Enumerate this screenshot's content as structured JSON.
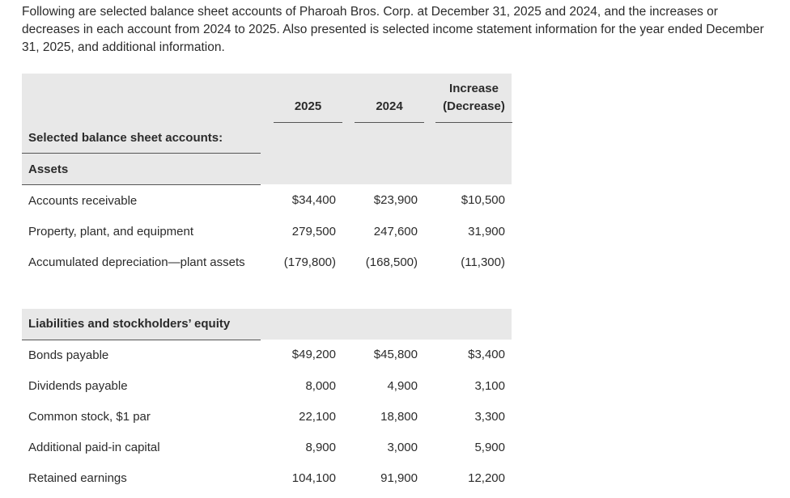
{
  "intro": "Following are selected balance sheet accounts of Pharoah Bros. Corp. at December 31, 2025 and 2024, and the increases or decreases in each account from 2024 to 2025. Also presented is selected income statement information for the year ended December 31, 2025, and additional information.",
  "table": {
    "headers": {
      "col_2025": "2025",
      "col_2024": "2024",
      "col_change_line1": "Increase",
      "col_change_line2": "(Decrease)"
    },
    "section_title": "Selected balance sheet accounts:",
    "assets": {
      "heading": "Assets",
      "rows": [
        {
          "label": "Accounts receivable",
          "v2025": "$34,400",
          "v2024": "$23,900",
          "change": "$10,500"
        },
        {
          "label": "Property, plant, and equipment",
          "v2025": "279,500",
          "v2024": "247,600",
          "change": "31,900"
        },
        {
          "label": "Accumulated depreciation—plant assets",
          "v2025": "(179,800)",
          "v2024": "(168,500)",
          "change": "(11,300)"
        }
      ]
    },
    "liabilities": {
      "heading": "Liabilities and stockholders’ equity",
      "rows": [
        {
          "label": "Bonds payable",
          "v2025": "$49,200",
          "v2024": "$45,800",
          "change": "$3,400"
        },
        {
          "label": "Dividends payable",
          "v2025": "8,000",
          "v2024": "4,900",
          "change": "3,100"
        },
        {
          "label": "Common stock, $1 par",
          "v2025": "22,100",
          "v2024": "18,800",
          "change": "3,300"
        },
        {
          "label": "Additional paid-in capital",
          "v2025": "8,900",
          "v2024": "3,000",
          "change": "5,900"
        },
        {
          "label": "Retained earnings",
          "v2025": "104,100",
          "v2024": "91,900",
          "change": "12,200"
        }
      ]
    }
  }
}
